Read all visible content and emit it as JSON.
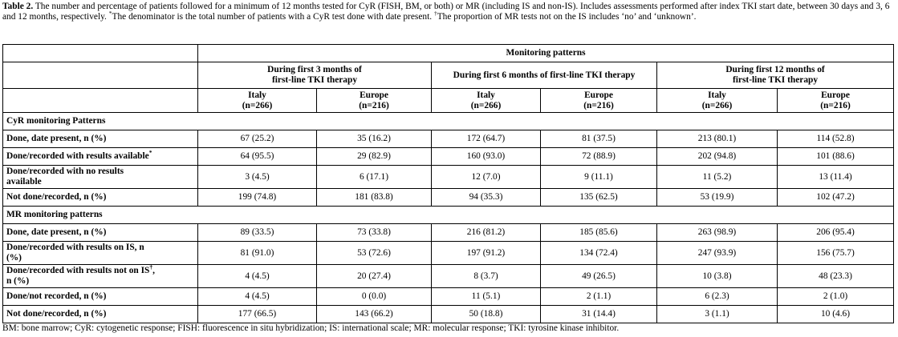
{
  "caption": {
    "label": "Table 2.",
    "text": " The number and percentage of patients followed for a minimum of 12 months tested for CyR (FISH, BM, or both) or MR (including IS and non-IS). Includes assessments performed after index TKI start date, between 30 days and 3, 6 and 12 months, respectively. ",
    "note1_mark": "*",
    "note1_text": "The denominator is the total number of patients with a CyR test done with date present. ",
    "note2_mark": "†",
    "note2_text": "The proportion of MR tests not on the IS includes ‘no’ and ‘unknown’."
  },
  "table": {
    "monitoring_header": "Monitoring patterns",
    "periods": [
      {
        "line1": "During first 3 months of",
        "line2": "first-line TKI therapy"
      },
      {
        "line1": "During first 6 months of first-line TKI therapy",
        "line2": ""
      },
      {
        "line1": "During first 12 months of",
        "line2": "first-line TKI therapy"
      }
    ],
    "countries": [
      {
        "name": "Italy",
        "n": "(n=266)"
      },
      {
        "name": "Europe",
        "n": "(n=216)"
      },
      {
        "name": "Italy",
        "n": "(n=266)"
      },
      {
        "name": "Europe",
        "n": "(n=216)"
      },
      {
        "name": "Italy",
        "n": "(n=266)"
      },
      {
        "name": "Europe",
        "n": "(n=216)"
      }
    ],
    "sections": [
      {
        "title": "CyR monitoring Patterns",
        "rows": [
          {
            "label": "Done, date present, n (%)",
            "sup": "",
            "label2": "",
            "values": [
              "67 (25.2)",
              "35 (16.2)",
              "172 (64.7)",
              "81 (37.5)",
              "213 (80.1)",
              "114 (52.8)"
            ]
          },
          {
            "label": "Done/recorded with results available",
            "sup": "*",
            "label2": "",
            "values": [
              "64 (95.5)",
              "29 (82.9)",
              "160 (93.0)",
              "72 (88.9)",
              "202 (94.8)",
              "101 (88.6)"
            ]
          },
          {
            "label": "Done/recorded with no results",
            "sup": "",
            "label2": "available",
            "values": [
              "3 (4.5)",
              "6 (17.1)",
              "12 (7.0)",
              "9 (11.1)",
              "11 (5.2)",
              "13 (11.4)"
            ]
          },
          {
            "label": "Not done/recorded, n (%)",
            "sup": "",
            "label2": "",
            "values": [
              "199 (74.8)",
              "181 (83.8)",
              "94 (35.3)",
              "135 (62.5)",
              "53 (19.9)",
              "102 (47.2)"
            ]
          }
        ]
      },
      {
        "title": "MR monitoring patterns",
        "rows": [
          {
            "label": "Done, date present, n (%)",
            "sup": "",
            "label2": "",
            "values": [
              "89 (33.5)",
              "73 (33.8)",
              "216 (81.2)",
              "185 (85.6)",
              "263 (98.9)",
              "206 (95.4)"
            ]
          },
          {
            "label": "Done/recorded with results on IS, n",
            "sup": "",
            "label2": "(%)",
            "values": [
              "81 (91.0)",
              "53 (72.6)",
              "197 (91.2)",
              "134 (72.4)",
              "247 (93.9)",
              "156 (75.7)"
            ]
          },
          {
            "label": "Done/recorded with results not on IS",
            "sup": "†",
            "label2": "n (%)",
            "values": [
              "4 (4.5)",
              "20 (27.4)",
              "8 (3.7)",
              "49 (26.5)",
              "10 (3.8)",
              "48 (23.3)"
            ]
          },
          {
            "label": "Done/not recorded, n (%)",
            "sup": "",
            "label2": "",
            "values": [
              "4 (4.5)",
              "0 (0.0)",
              "11 (5.1)",
              "2 (1.1)",
              "6 (2.3)",
              "2 (1.0)"
            ]
          },
          {
            "label": "Not done/recorded, n (%)",
            "sup": "",
            "label2": "",
            "values": [
              "177 (66.5)",
              "143 (66.2)",
              "50 (18.8)",
              "31 (14.4)",
              "3 (1.1)",
              "10 (4.6)"
            ]
          }
        ]
      }
    ]
  },
  "footer": "BM: bone marrow; CyR: cytogenetic response; FISH: fluorescence in situ hybridization; IS: international scale; MR: molecular response; TKI: tyrosine kinase inhibitor."
}
